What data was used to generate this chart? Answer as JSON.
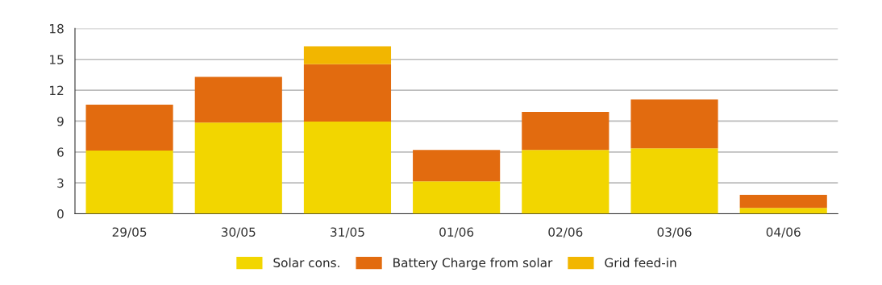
{
  "chart_data": {
    "type": "bar",
    "stacked": true,
    "categories": [
      "29/05",
      "30/05",
      "31/05",
      "01/06",
      "02/06",
      "03/06",
      "04/06"
    ],
    "series": [
      {
        "name": "Solar cons.",
        "color": "#f2d600",
        "values": [
          6.15,
          8.85,
          8.95,
          3.14,
          6.2,
          6.35,
          0.57
        ]
      },
      {
        "name": "Battery Charge from solar",
        "color": "#e26b0f",
        "values": [
          4.45,
          4.45,
          5.58,
          3.06,
          3.69,
          4.75,
          1.27
        ]
      },
      {
        "name": "Grid feed-in",
        "color": "#f2b600",
        "values": [
          null,
          null,
          1.75,
          null,
          null,
          null,
          null
        ]
      }
    ],
    "ylim": [
      0,
      18
    ],
    "yticks": [
      0,
      3,
      6,
      9,
      12,
      15,
      18
    ],
    "grid": "y",
    "legend": "bottom"
  }
}
